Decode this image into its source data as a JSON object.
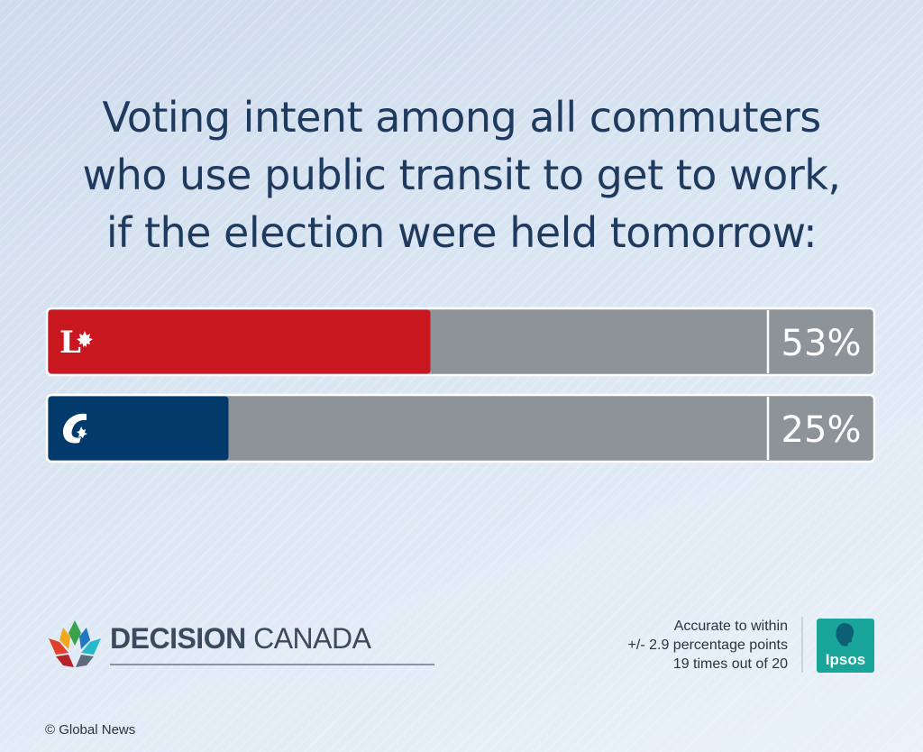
{
  "chart_data": {
    "type": "bar",
    "orientation": "horizontal",
    "title_lines": [
      "Voting intent among all commuters",
      "who use public transit to get to work,",
      "if the election were held tomorrow:"
    ],
    "categories": [
      "Liberal",
      "Conservative"
    ],
    "values": [
      53,
      25
    ],
    "value_labels": [
      "53%",
      "25%"
    ],
    "xlim": [
      0,
      100
    ],
    "colors": [
      "#c8171e",
      "#013a6b"
    ],
    "track_color": "#8c9399",
    "icons": [
      "liberal-logo-icon",
      "conservative-logo-icon"
    ]
  },
  "branding": {
    "decision_bold": "DECISION",
    "decision_light": " CANADA",
    "pollster": "Ipsos"
  },
  "margin_of_error": {
    "line1": "Accurate to within",
    "line2": "+/- 2.9 percentage points",
    "line3": "19 times out of 20"
  },
  "credit": "© Global News"
}
